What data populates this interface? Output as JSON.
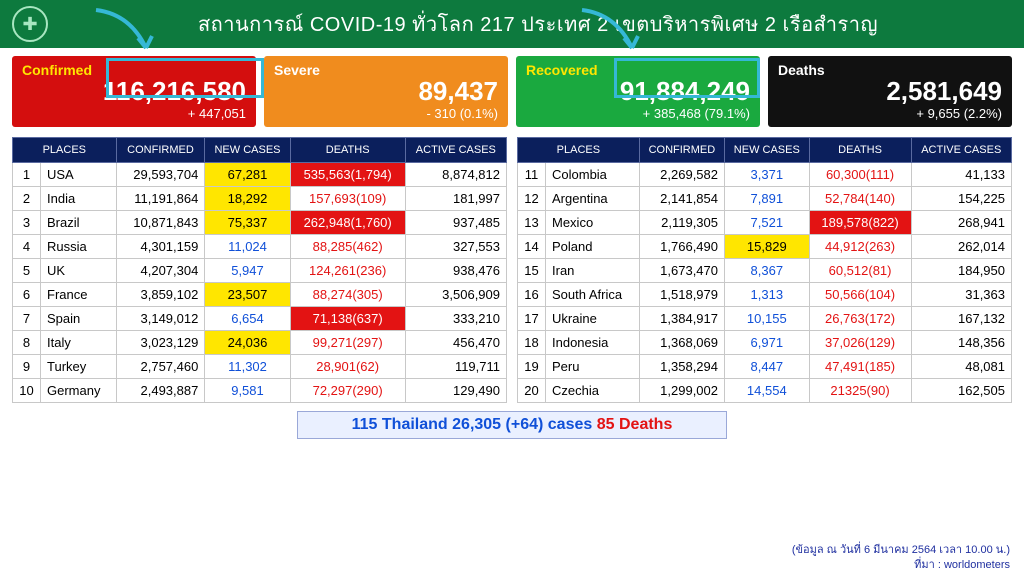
{
  "header": {
    "title": "สถานการณ์ COVID-19 ทั่วโลก 217 ประเทศ 2 เขตบริหารพิเศษ 2 เรือสำราญ"
  },
  "stats": {
    "confirmed": {
      "label": "Confirmed",
      "value": "116,216,580",
      "delta": "+ 447,051"
    },
    "severe": {
      "label": "Severe",
      "value": "89,437",
      "delta": "- 310 (0.1%)"
    },
    "recovered": {
      "label": "Recovered",
      "value": "91,884,249",
      "delta": "+ 385,468 (79.1%)"
    },
    "deaths": {
      "label": "Deaths",
      "value": "2,581,649",
      "delta": "+ 9,655 (2.2%)"
    }
  },
  "columns": {
    "places": "PLACES",
    "confirmed": "CONFIRMED",
    "newcases": "NEW\nCASES",
    "deaths": "DEATHS",
    "active": "ACTIVE\nCASES"
  },
  "left": [
    {
      "rank": "1",
      "place": "USA",
      "confirmed": "29,593,704",
      "nc": "67,281",
      "nc_style": "yellow",
      "deaths": "535,563(1,794)",
      "d_style": "redbg",
      "active": "8,874,812"
    },
    {
      "rank": "2",
      "place": "India",
      "confirmed": "11,191,864",
      "nc": "18,292",
      "nc_style": "yellow",
      "deaths": "157,693(109)",
      "d_style": "red",
      "active": "181,997"
    },
    {
      "rank": "3",
      "place": "Brazil",
      "confirmed": "10,871,843",
      "nc": "75,337",
      "nc_style": "yellow",
      "deaths": "262,948(1,760)",
      "d_style": "redbg",
      "active": "937,485"
    },
    {
      "rank": "4",
      "place": "Russia",
      "confirmed": "4,301,159",
      "nc": "11,024",
      "nc_style": "blue",
      "deaths": "88,285(462)",
      "d_style": "red",
      "active": "327,553"
    },
    {
      "rank": "5",
      "place": "UK",
      "confirmed": "4,207,304",
      "nc": "5,947",
      "nc_style": "blue",
      "deaths": "124,261(236)",
      "d_style": "red",
      "active": "938,476"
    },
    {
      "rank": "6",
      "place": "France",
      "confirmed": "3,859,102",
      "nc": "23,507",
      "nc_style": "yellow",
      "deaths": "88,274(305)",
      "d_style": "red",
      "active": "3,506,909"
    },
    {
      "rank": "7",
      "place": "Spain",
      "confirmed": "3,149,012",
      "nc": "6,654",
      "nc_style": "blue",
      "deaths": "71,138(637)",
      "d_style": "redbg",
      "active": "333,210"
    },
    {
      "rank": "8",
      "place": "Italy",
      "confirmed": "3,023,129",
      "nc": "24,036",
      "nc_style": "yellow",
      "deaths": "99,271(297)",
      "d_style": "red",
      "active": "456,470"
    },
    {
      "rank": "9",
      "place": "Turkey",
      "confirmed": "2,757,460",
      "nc": "11,302",
      "nc_style": "blue",
      "deaths": "28,901(62)",
      "d_style": "red",
      "active": "119,711"
    },
    {
      "rank": "10",
      "place": "Germany",
      "confirmed": "2,493,887",
      "nc": "9,581",
      "nc_style": "blue",
      "deaths": "72,297(290)",
      "d_style": "red",
      "active": "129,490"
    }
  ],
  "right": [
    {
      "rank": "11",
      "place": "Colombia",
      "confirmed": "2,269,582",
      "nc": "3,371",
      "nc_style": "blue",
      "deaths": "60,300(111)",
      "d_style": "red",
      "active": "41,133"
    },
    {
      "rank": "12",
      "place": "Argentina",
      "confirmed": "2,141,854",
      "nc": "7,891",
      "nc_style": "blue",
      "deaths": "52,784(140)",
      "d_style": "red",
      "active": "154,225"
    },
    {
      "rank": "13",
      "place": "Mexico",
      "confirmed": "2,119,305",
      "nc": "7,521",
      "nc_style": "blue",
      "deaths": "189,578(822)",
      "d_style": "redbg",
      "active": "268,941"
    },
    {
      "rank": "14",
      "place": "Poland",
      "confirmed": "1,766,490",
      "nc": "15,829",
      "nc_style": "yellow",
      "deaths": "44,912(263)",
      "d_style": "red",
      "active": "262,014"
    },
    {
      "rank": "15",
      "place": "Iran",
      "confirmed": "1,673,470",
      "nc": "8,367",
      "nc_style": "blue",
      "deaths": "60,512(81)",
      "d_style": "red",
      "active": "184,950"
    },
    {
      "rank": "16",
      "place": "South Africa",
      "confirmed": "1,518,979",
      "nc": "1,313",
      "nc_style": "blue",
      "deaths": "50,566(104)",
      "d_style": "red",
      "active": "31,363"
    },
    {
      "rank": "17",
      "place": "Ukraine",
      "confirmed": "1,384,917",
      "nc": "10,155",
      "nc_style": "blue",
      "deaths": "26,763(172)",
      "d_style": "red",
      "active": "167,132"
    },
    {
      "rank": "18",
      "place": "Indonesia",
      "confirmed": "1,368,069",
      "nc": "6,971",
      "nc_style": "blue",
      "deaths": "37,026(129)",
      "d_style": "red",
      "active": "148,356"
    },
    {
      "rank": "19",
      "place": "Peru",
      "confirmed": "1,358,294",
      "nc": "8,447",
      "nc_style": "blue",
      "deaths": "47,491(185)",
      "d_style": "red",
      "active": "48,081"
    },
    {
      "rank": "20",
      "place": "Czechia",
      "confirmed": "1,299,002",
      "nc": "14,554",
      "nc_style": "blue",
      "deaths": "21325(90)",
      "d_style": "red",
      "active": "162,505"
    }
  ],
  "footer": {
    "rank": "115",
    "country": "Thailand",
    "cases": "26,305 (+64)",
    "cases_word": "cases",
    "deaths_n": "85",
    "deaths_word": "Deaths"
  },
  "source": {
    "line1": "(ข้อมูล ณ วันที่ 6 มีนาคม 2564 เวลา 10.00 น.)",
    "line2": "ที่มา : worldometers"
  },
  "colors": {
    "header_bg": "#0d7a3e",
    "confirmed": "#d40e0e",
    "severe": "#f08c1e",
    "recovered": "#1aa93f",
    "deaths": "#111111",
    "table_header": "#0b1f5c",
    "highlight": "#35b8d6"
  }
}
